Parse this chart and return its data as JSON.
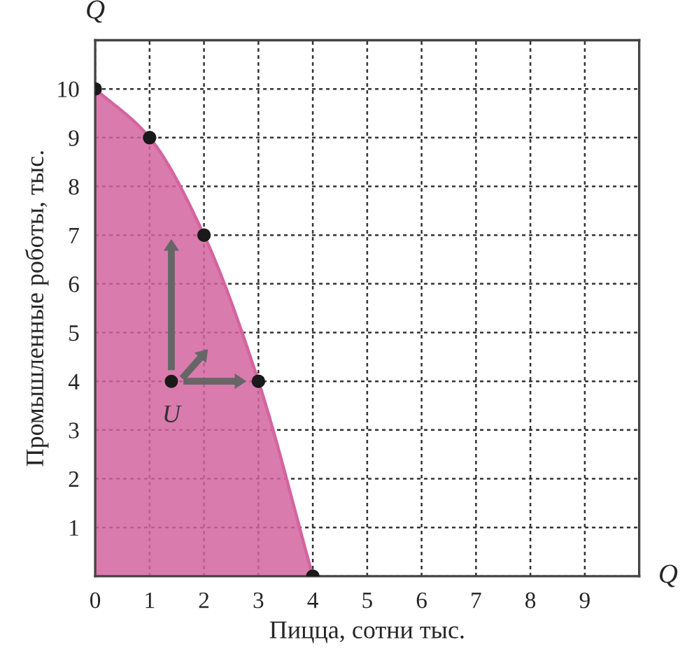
{
  "chart_data": {
    "type": "area",
    "xlabel": "Пицца, сотни тыс.",
    "ylabel": "Промышленные роботы, тыс.",
    "xlim": [
      0,
      10
    ],
    "ylim": [
      0,
      11
    ],
    "xticks": [
      0,
      1,
      2,
      3,
      4,
      5,
      6,
      7,
      8,
      9,
      {
        "value": 10,
        "label": null
      }
    ],
    "yticks": [
      {
        "value": 0,
        "label": null
      },
      1,
      2,
      3,
      4,
      5,
      6,
      7,
      8,
      9,
      10
    ],
    "grid": true,
    "legend": false,
    "series": [
      {
        "color": "#d4649f",
        "x": [
          0,
          1,
          2,
          3,
          4
        ],
        "values": [
          10,
          9,
          7,
          4,
          0
        ],
        "marker": "circle"
      },
      {
        "type": "scatter",
        "color": "#1a1a1a",
        "x": [
          1.4
        ],
        "values": [
          4
        ],
        "marker": "circle"
      }
    ],
    "annotations": [
      "Q",
      "Q",
      {
        "text": "U",
        "x": 1.4,
        "y": 4
      }
    ]
  }
}
